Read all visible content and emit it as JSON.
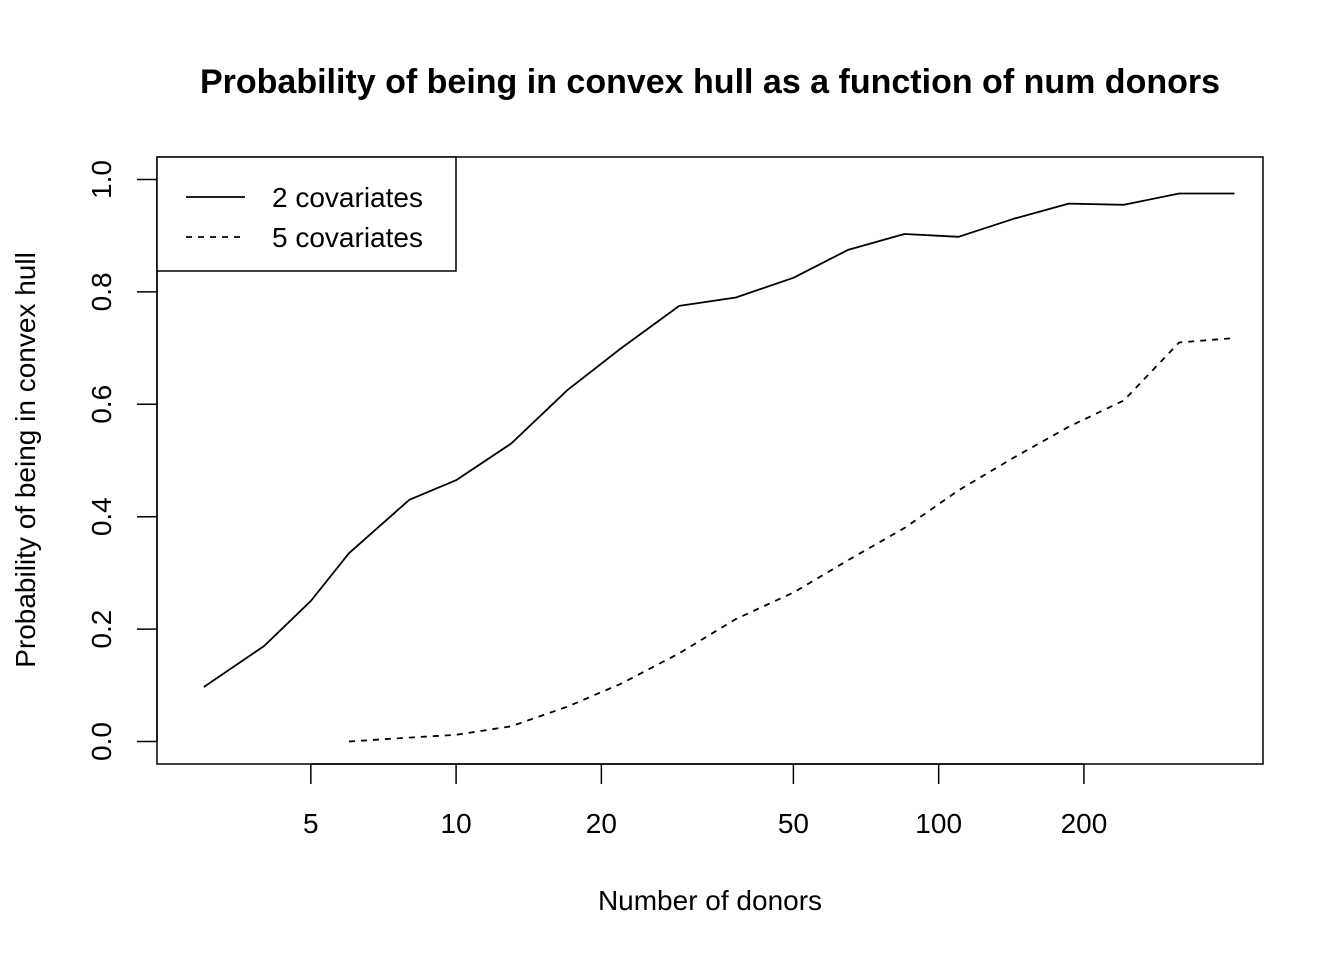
{
  "chart_data": {
    "type": "line",
    "title": "Probability of being in convex hull as a function of num donors",
    "xlabel": "Number of donors",
    "ylabel": "Probability of being in convex hull",
    "x_scale": "log",
    "xlim": [
      2.4,
      470
    ],
    "ylim": [
      -0.04,
      1.04
    ],
    "x_ticks": [
      5,
      10,
      20,
      50,
      100,
      200
    ],
    "x_tick_labels": [
      "5",
      "10",
      "20",
      "50",
      "100",
      "200"
    ],
    "y_ticks": [
      0.0,
      0.2,
      0.4,
      0.6,
      0.8,
      1.0
    ],
    "y_tick_labels": [
      "0.0",
      "0.2",
      "0.4",
      "0.6",
      "0.8",
      "1.0"
    ],
    "grid": false,
    "legend_position": "top-left",
    "series": [
      {
        "name": "2 covariates",
        "line_style": "solid",
        "color": "#000000",
        "points": [
          [
            3,
            0.097
          ],
          [
            4,
            0.17
          ],
          [
            5,
            0.25
          ],
          [
            6,
            0.335
          ],
          [
            8,
            0.43
          ],
          [
            10,
            0.465
          ],
          [
            13,
            0.53
          ],
          [
            17,
            0.625
          ],
          [
            22,
            0.7
          ],
          [
            29,
            0.775
          ],
          [
            38,
            0.79
          ],
          [
            50,
            0.825
          ],
          [
            65,
            0.875
          ],
          [
            85,
            0.903
          ],
          [
            110,
            0.898
          ],
          [
            143,
            0.93
          ],
          [
            186,
            0.957
          ],
          [
            242,
            0.955
          ],
          [
            315,
            0.975
          ],
          [
            410,
            0.975
          ]
        ]
      },
      {
        "name": "5 covariates",
        "line_style": "dashed",
        "color": "#000000",
        "points": [
          [
            6,
            0.0
          ],
          [
            8,
            0.007
          ],
          [
            10,
            0.012
          ],
          [
            13,
            0.027
          ],
          [
            17,
            0.062
          ],
          [
            22,
            0.103
          ],
          [
            29,
            0.157
          ],
          [
            38,
            0.218
          ],
          [
            50,
            0.265
          ],
          [
            65,
            0.323
          ],
          [
            85,
            0.38
          ],
          [
            110,
            0.447
          ],
          [
            143,
            0.505
          ],
          [
            186,
            0.56
          ],
          [
            242,
            0.607
          ],
          [
            315,
            0.71
          ],
          [
            410,
            0.718
          ]
        ]
      }
    ]
  }
}
